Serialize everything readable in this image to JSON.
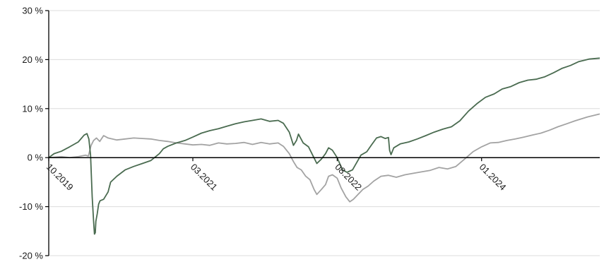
{
  "chart_data": {
    "type": "line",
    "title": "",
    "xlabel": "",
    "ylabel": "",
    "ylim": [
      -20,
      30
    ],
    "yticks": [
      {
        "value": 30,
        "label": "30 %"
      },
      {
        "value": 20,
        "label": "20 %"
      },
      {
        "value": 10,
        "label": "10 %"
      },
      {
        "value": 0,
        "label": "0 %"
      },
      {
        "value": -10,
        "label": "-10 %"
      },
      {
        "value": -20,
        "label": "-20 %"
      }
    ],
    "xlim": [
      "2019-10-01",
      "2025-02-28"
    ],
    "xticks": [
      {
        "value": "2019-10-01",
        "label": "10.2019"
      },
      {
        "value": "2021-03-01",
        "label": "03.2021"
      },
      {
        "value": "2022-08-01",
        "label": "08.2022"
      },
      {
        "value": "2024-01-01",
        "label": "01.2024"
      }
    ],
    "grid": {
      "horizontal": true,
      "vertical": false
    },
    "colors": {
      "series_dark": "#4a6b50",
      "series_light": "#a3a3a3",
      "grid": "#dcdcdc",
      "axis": "#000000"
    },
    "series": [
      {
        "color": "#4a6b50",
        "points": [
          [
            "2019-10-01",
            0.0
          ],
          [
            "2019-10-20",
            0.8
          ],
          [
            "2019-11-15",
            1.3
          ],
          [
            "2019-12-15",
            2.2
          ],
          [
            "2020-01-15",
            3.2
          ],
          [
            "2020-02-05",
            4.6
          ],
          [
            "2020-02-15",
            4.9
          ],
          [
            "2020-02-22",
            3.8
          ],
          [
            "2020-02-28",
            0.5
          ],
          [
            "2020-03-05",
            -8.0
          ],
          [
            "2020-03-10",
            -13.0
          ],
          [
            "2020-03-13",
            -15.6
          ],
          [
            "2020-03-16",
            -15.3
          ],
          [
            "2020-03-18",
            -13.0
          ],
          [
            "2020-03-23",
            -11.5
          ],
          [
            "2020-03-28",
            -9.5
          ],
          [
            "2020-04-02",
            -8.8
          ],
          [
            "2020-04-15",
            -8.5
          ],
          [
            "2020-05-01",
            -7.0
          ],
          [
            "2020-05-10",
            -5.0
          ],
          [
            "2020-06-01",
            -3.8
          ],
          [
            "2020-07-01",
            -2.5
          ],
          [
            "2020-08-01",
            -1.8
          ],
          [
            "2020-09-01",
            -1.2
          ],
          [
            "2020-10-01",
            -0.6
          ],
          [
            "2020-11-01",
            0.8
          ],
          [
            "2020-11-15",
            1.8
          ],
          [
            "2020-12-01",
            2.3
          ],
          [
            "2021-01-01",
            3.0
          ],
          [
            "2021-02-01",
            3.5
          ],
          [
            "2021-03-01",
            4.2
          ],
          [
            "2021-04-01",
            5.0
          ],
          [
            "2021-05-01",
            5.5
          ],
          [
            "2021-06-01",
            5.9
          ],
          [
            "2021-07-01",
            6.4
          ],
          [
            "2021-08-01",
            6.9
          ],
          [
            "2021-09-01",
            7.3
          ],
          [
            "2021-10-01",
            7.6
          ],
          [
            "2021-11-01",
            7.9
          ],
          [
            "2021-12-01",
            7.4
          ],
          [
            "2022-01-01",
            7.6
          ],
          [
            "2022-01-20",
            7.0
          ],
          [
            "2022-02-10",
            5.2
          ],
          [
            "2022-02-25",
            2.5
          ],
          [
            "2022-03-08",
            3.5
          ],
          [
            "2022-03-15",
            4.8
          ],
          [
            "2022-04-01",
            3.0
          ],
          [
            "2022-04-20",
            2.2
          ],
          [
            "2022-05-05",
            0.5
          ],
          [
            "2022-05-20",
            -1.2
          ],
          [
            "2022-06-05",
            -0.3
          ],
          [
            "2022-06-20",
            0.8
          ],
          [
            "2022-07-01",
            2.0
          ],
          [
            "2022-07-15",
            1.5
          ],
          [
            "2022-08-01",
            0.0
          ],
          [
            "2022-08-20",
            -2.5
          ],
          [
            "2022-09-05",
            -3.0
          ],
          [
            "2022-09-25",
            -2.5
          ],
          [
            "2022-10-10",
            -1.0
          ],
          [
            "2022-10-25",
            0.5
          ],
          [
            "2022-11-15",
            1.2
          ],
          [
            "2022-12-01",
            2.5
          ],
          [
            "2022-12-20",
            4.0
          ],
          [
            "2023-01-05",
            4.3
          ],
          [
            "2023-01-20",
            3.9
          ],
          [
            "2023-02-01",
            4.1
          ],
          [
            "2023-02-05",
            1.5
          ],
          [
            "2023-02-10",
            0.6
          ],
          [
            "2023-02-20",
            2.0
          ],
          [
            "2023-03-15",
            2.8
          ],
          [
            "2023-04-15",
            3.2
          ],
          [
            "2023-05-15",
            3.8
          ],
          [
            "2023-06-15",
            4.5
          ],
          [
            "2023-07-15",
            5.2
          ],
          [
            "2023-08-15",
            5.8
          ],
          [
            "2023-09-15",
            6.3
          ],
          [
            "2023-10-15",
            7.5
          ],
          [
            "2023-11-15",
            9.5
          ],
          [
            "2023-12-15",
            11.0
          ],
          [
            "2024-01-15",
            12.3
          ],
          [
            "2024-02-15",
            13.0
          ],
          [
            "2024-03-15",
            14.0
          ],
          [
            "2024-04-15",
            14.5
          ],
          [
            "2024-05-15",
            15.3
          ],
          [
            "2024-06-15",
            15.8
          ],
          [
            "2024-07-15",
            16.0
          ],
          [
            "2024-08-15",
            16.5
          ],
          [
            "2024-09-15",
            17.3
          ],
          [
            "2024-10-15",
            18.2
          ],
          [
            "2024-11-15",
            18.8
          ],
          [
            "2024-12-15",
            19.6
          ],
          [
            "2025-01-20",
            20.1
          ],
          [
            "2025-02-28",
            20.3
          ]
        ]
      },
      {
        "color": "#a3a3a3",
        "points": [
          [
            "2019-10-01",
            0.0
          ],
          [
            "2019-11-15",
            0.2
          ],
          [
            "2019-12-15",
            0.0
          ],
          [
            "2020-01-15",
            0.2
          ],
          [
            "2020-02-10",
            0.5
          ],
          [
            "2020-02-20",
            0.3
          ],
          [
            "2020-03-01",
            2.5
          ],
          [
            "2020-03-10",
            3.5
          ],
          [
            "2020-03-20",
            4.0
          ],
          [
            "2020-04-01",
            3.3
          ],
          [
            "2020-04-15",
            4.5
          ],
          [
            "2020-05-01",
            4.0
          ],
          [
            "2020-06-01",
            3.6
          ],
          [
            "2020-07-01",
            3.8
          ],
          [
            "2020-08-01",
            4.0
          ],
          [
            "2020-09-01",
            3.9
          ],
          [
            "2020-10-01",
            3.8
          ],
          [
            "2020-11-01",
            3.5
          ],
          [
            "2020-12-01",
            3.3
          ],
          [
            "2021-01-01",
            3.0
          ],
          [
            "2021-02-01",
            2.8
          ],
          [
            "2021-03-01",
            2.6
          ],
          [
            "2021-04-01",
            2.7
          ],
          [
            "2021-05-01",
            2.5
          ],
          [
            "2021-06-01",
            3.0
          ],
          [
            "2021-07-01",
            2.8
          ],
          [
            "2021-08-01",
            2.9
          ],
          [
            "2021-09-01",
            3.1
          ],
          [
            "2021-10-01",
            2.7
          ],
          [
            "2021-11-01",
            3.1
          ],
          [
            "2021-12-01",
            2.8
          ],
          [
            "2022-01-01",
            3.0
          ],
          [
            "2022-01-20",
            2.3
          ],
          [
            "2022-02-10",
            0.8
          ],
          [
            "2022-02-25",
            -0.8
          ],
          [
            "2022-03-10",
            -2.0
          ],
          [
            "2022-03-25",
            -2.5
          ],
          [
            "2022-04-10",
            -3.8
          ],
          [
            "2022-04-25",
            -4.5
          ],
          [
            "2022-05-10",
            -6.5
          ],
          [
            "2022-05-20",
            -7.5
          ],
          [
            "2022-06-05",
            -6.5
          ],
          [
            "2022-06-20",
            -5.5
          ],
          [
            "2022-07-01",
            -3.8
          ],
          [
            "2022-07-15",
            -3.5
          ],
          [
            "2022-08-01",
            -4.2
          ],
          [
            "2022-08-15",
            -6.2
          ],
          [
            "2022-09-01",
            -8.0
          ],
          [
            "2022-09-15",
            -9.0
          ],
          [
            "2022-09-28",
            -8.5
          ],
          [
            "2022-10-15",
            -7.5
          ],
          [
            "2022-11-01",
            -6.5
          ],
          [
            "2022-11-20",
            -5.8
          ],
          [
            "2022-12-10",
            -4.8
          ],
          [
            "2023-01-05",
            -3.8
          ],
          [
            "2023-02-01",
            -3.6
          ],
          [
            "2023-03-01",
            -4.0
          ],
          [
            "2023-04-01",
            -3.5
          ],
          [
            "2023-05-01",
            -3.2
          ],
          [
            "2023-06-01",
            -2.9
          ],
          [
            "2023-07-01",
            -2.6
          ],
          [
            "2023-08-01",
            -2.0
          ],
          [
            "2023-09-01",
            -2.3
          ],
          [
            "2023-10-01",
            -1.8
          ],
          [
            "2023-11-01",
            -0.3
          ],
          [
            "2023-12-01",
            1.2
          ],
          [
            "2024-01-01",
            2.2
          ],
          [
            "2024-02-01",
            3.0
          ],
          [
            "2024-03-01",
            3.1
          ],
          [
            "2024-04-01",
            3.5
          ],
          [
            "2024-05-01",
            3.8
          ],
          [
            "2024-06-01",
            4.2
          ],
          [
            "2024-07-01",
            4.6
          ],
          [
            "2024-08-01",
            5.0
          ],
          [
            "2024-09-01",
            5.6
          ],
          [
            "2024-10-01",
            6.3
          ],
          [
            "2024-11-01",
            6.9
          ],
          [
            "2024-12-01",
            7.5
          ],
          [
            "2025-01-15",
            8.3
          ],
          [
            "2025-02-28",
            8.9
          ]
        ]
      }
    ]
  }
}
